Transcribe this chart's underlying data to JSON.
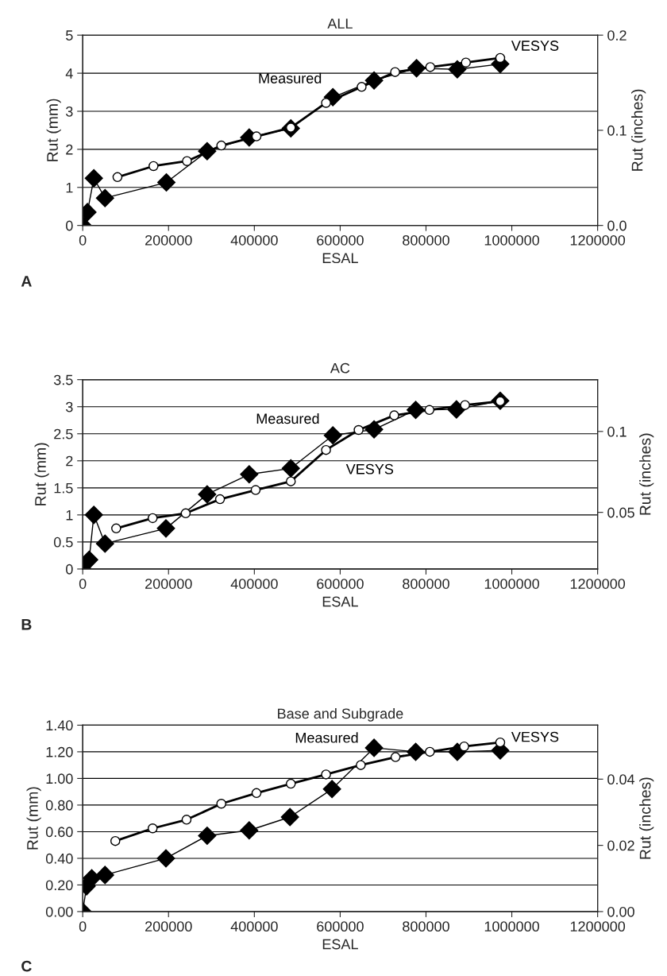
{
  "chart_data": [
    {
      "type": "line",
      "title": "ALL",
      "xlabel": "ESAL",
      "ylabel": "Rut (mm)",
      "y2label": "Rut (inches)",
      "xlim": [
        0,
        1200000
      ],
      "xticks": [
        0,
        200000,
        400000,
        600000,
        800000,
        1000000,
        1200000
      ],
      "ylim": [
        0,
        5
      ],
      "yticks": [
        0,
        1,
        2,
        3,
        4,
        5
      ],
      "y2lim": [
        0,
        0.2
      ],
      "y2ticks": [
        {
          "value": 0,
          "label": "0.0"
        },
        0.1,
        0.2
      ],
      "grid": "y",
      "legend": false,
      "series": [
        {
          "name": "Measured",
          "color": "#000000",
          "marker": "diamond",
          "x": [
            0,
            11000,
            26000,
            52000,
            195000,
            290000,
            388000,
            485000,
            583000,
            679000,
            778000,
            873000,
            973000
          ],
          "values": [
            0,
            0.35,
            1.24,
            0.72,
            1.13,
            1.95,
            2.31,
            2.55,
            3.37,
            3.81,
            4.13,
            4.1,
            4.24
          ]
        },
        {
          "name": "VESYS",
          "color": "#000000",
          "marker": "circle",
          "x": [
            81000,
            165000,
            243000,
            323000,
            405000,
            485000,
            567000,
            650000,
            728000,
            810000,
            893000,
            973000
          ],
          "values": [
            1.27,
            1.56,
            1.69,
            2.1,
            2.34,
            2.57,
            3.22,
            3.64,
            4.03,
            4.16,
            4.28,
            4.4
          ]
        }
      ],
      "annotations": [
        "A"
      ]
    },
    {
      "type": "line",
      "title": "AC",
      "xlabel": "ESAL",
      "ylabel": "Rut (mm)",
      "y2label": "Rut (inches)",
      "xlim": [
        0,
        1200000
      ],
      "xticks": [
        0,
        200000,
        400000,
        600000,
        800000,
        1000000,
        1200000
      ],
      "ylim": [
        0,
        3.5
      ],
      "yticks": [
        0,
        0.5,
        1,
        1.5,
        2,
        2.5,
        3,
        3.5
      ],
      "y2lim": [
        0.015,
        0.132
      ],
      "y2ticks": [
        0.05,
        0.1
      ],
      "grid": "y",
      "legend": false,
      "series": [
        {
          "name": "Measured",
          "color": "#000000",
          "marker": "diamond",
          "x": [
            0,
            15000,
            26000,
            52000,
            194000,
            290000,
            388000,
            485000,
            583000,
            679000,
            776000,
            871000,
            973000
          ],
          "values": [
            0,
            0.17,
            1.0,
            0.47,
            0.75,
            1.38,
            1.75,
            1.86,
            2.47,
            2.58,
            2.94,
            2.95,
            3.11
          ]
        },
        {
          "name": "VESYS",
          "color": "#000000",
          "marker": "circle",
          "x": [
            78000,
            163000,
            240000,
            320000,
            403000,
            485000,
            567000,
            643000,
            726000,
            808000,
            891000,
            973000
          ],
          "values": [
            0.75,
            0.94,
            1.03,
            1.29,
            1.46,
            1.62,
            2.2,
            2.57,
            2.84,
            2.94,
            3.03,
            3.1
          ]
        }
      ],
      "annotations": [
        "B"
      ]
    },
    {
      "type": "line",
      "title": "Base and Subgrade",
      "xlabel": "ESAL",
      "ylabel": "Rut (mm)",
      "y2label": "Rut (inches)",
      "xlim": [
        0,
        1200000
      ],
      "xticks": [
        0,
        200000,
        400000,
        600000,
        800000,
        1000000,
        1200000
      ],
      "ylim": [
        0,
        1.4
      ],
      "yticks": [
        {
          "value": 0,
          "label": "0.00"
        },
        {
          "value": 0.2,
          "label": "0.20"
        },
        {
          "value": 0.4,
          "label": "0.40"
        },
        {
          "value": 0.6,
          "label": "0.60"
        },
        {
          "value": 0.8,
          "label": "0.80"
        },
        {
          "value": 1.0,
          "label": "1.00"
        },
        {
          "value": 1.2,
          "label": "1.20"
        },
        {
          "value": 1.4,
          "label": "1.40"
        }
      ],
      "y2lim": [
        0,
        0.0563
      ],
      "y2ticks": [
        {
          "value": 0,
          "label": "0.00"
        },
        {
          "value": 0.02,
          "label": "0.02"
        },
        {
          "value": 0.04,
          "label": "0.04"
        }
      ],
      "grid": "y",
      "legend": false,
      "series": [
        {
          "name": "Measured",
          "color": "#000000",
          "marker": "diamond",
          "x": [
            0,
            9000,
            21000,
            52000,
            194000,
            290000,
            388000,
            483000,
            581000,
            679000,
            776000,
            873000,
            973000
          ],
          "values": [
            0,
            0.19,
            0.25,
            0.275,
            0.4,
            0.57,
            0.61,
            0.71,
            0.92,
            1.23,
            1.2,
            1.2,
            1.21
          ]
        },
        {
          "name": "VESYS",
          "color": "#000000",
          "marker": "circle",
          "x": [
            76000,
            163000,
            242000,
            323000,
            405000,
            485000,
            567000,
            648000,
            729000,
            809000,
            889000,
            973000
          ],
          "values": [
            0.53,
            0.625,
            0.69,
            0.81,
            0.89,
            0.96,
            1.03,
            1.1,
            1.16,
            1.2,
            1.24,
            1.27
          ]
        }
      ],
      "annotations": [
        "C"
      ]
    }
  ]
}
